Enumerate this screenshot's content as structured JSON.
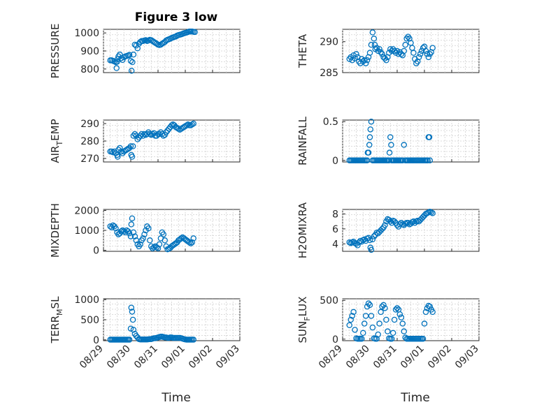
{
  "figure": {
    "title": "Figure 3 low",
    "xlabel": "Time",
    "marker_color": "#0072BD"
  },
  "x_ticks": [
    "08/29",
    "08/30",
    "08/31",
    "09/01",
    "09/02",
    "09/03"
  ],
  "chart_data": [
    {
      "type": "scatter",
      "id": "pressure",
      "ylabel": "PRESSURE",
      "ylim": [
        780,
        1020
      ],
      "yticks": [
        "800",
        "900",
        "1000"
      ],
      "ytick_values": [
        800,
        900,
        1000
      ],
      "x": [
        0.25,
        0.3,
        0.35,
        0.4,
        0.45,
        0.48,
        0.5,
        0.52,
        0.55,
        0.6,
        0.65,
        0.7,
        0.75,
        0.8,
        0.85,
        0.9,
        0.95,
        1.0,
        1.03,
        1.06,
        1.1,
        1.15,
        1.2,
        1.25,
        1.3,
        1.35,
        1.4,
        1.45,
        1.5,
        1.55,
        1.6,
        1.65,
        1.7,
        1.75,
        1.8,
        1.85,
        1.9,
        1.95,
        2.0,
        2.05,
        2.1,
        2.15,
        2.2,
        2.25,
        2.3,
        2.35,
        2.4,
        2.45,
        2.5,
        2.55,
        2.6,
        2.65,
        2.7,
        2.75,
        2.8,
        2.85,
        2.9,
        2.95,
        3.0,
        3.05,
        3.1,
        3.15,
        3.2,
        3.25,
        3.3,
        3.35
      ],
      "y": [
        848,
        848,
        845,
        842,
        838,
        805,
        840,
        855,
        870,
        880,
        860,
        850,
        865,
        870,
        872,
        875,
        878,
        845,
        790,
        838,
        880,
        935,
        930,
        915,
        940,
        950,
        955,
        955,
        958,
        960,
        955,
        958,
        962,
        960,
        955,
        950,
        945,
        940,
        935,
        933,
        935,
        940,
        945,
        950,
        958,
        962,
        965,
        968,
        972,
        975,
        978,
        980,
        985,
        988,
        990,
        992,
        995,
        998,
        1000,
        1002,
        1005,
        1008,
        1008,
        1008,
        1006,
        1005
      ]
    },
    {
      "type": "scatter",
      "id": "theta",
      "ylabel": "THETA",
      "ylim": [
        285,
        292
      ],
      "yticks": [
        "285",
        "290"
      ],
      "ytick_values": [
        285,
        290
      ],
      "x": [
        0.25,
        0.3,
        0.35,
        0.4,
        0.45,
        0.5,
        0.55,
        0.6,
        0.65,
        0.7,
        0.75,
        0.8,
        0.85,
        0.9,
        0.95,
        1.0,
        1.05,
        1.1,
        1.15,
        1.18,
        1.2,
        1.25,
        1.3,
        1.35,
        1.4,
        1.45,
        1.5,
        1.55,
        1.6,
        1.65,
        1.7,
        1.75,
        1.8,
        1.85,
        1.9,
        1.95,
        2.0,
        2.05,
        2.1,
        2.15,
        2.2,
        2.25,
        2.3,
        2.35,
        2.4,
        2.45,
        2.5,
        2.55,
        2.6,
        2.65,
        2.7,
        2.75,
        2.8,
        2.85,
        2.9,
        2.95,
        3.0,
        3.05,
        3.1,
        3.15,
        3.2,
        3.25,
        3.3
      ],
      "y": [
        287.2,
        287.5,
        287.0,
        287.8,
        287.3,
        288.0,
        287.5,
        286.8,
        286.5,
        287.2,
        286.8,
        287.0,
        286.5,
        287.0,
        287.5,
        288.2,
        289.5,
        291.5,
        290.5,
        289.5,
        288.8,
        289.0,
        288.5,
        288.8,
        288.3,
        288.0,
        287.5,
        287.3,
        287.0,
        287.5,
        288.2,
        288.8,
        288.5,
        288.8,
        288.5,
        288.2,
        288.5,
        288.0,
        288.3,
        288.0,
        287.8,
        288.5,
        289.5,
        290.5,
        290.8,
        290.5,
        289.8,
        289.0,
        288.2,
        287.2,
        286.5,
        286.8,
        287.5,
        288.0,
        288.5,
        289.0,
        289.2,
        288.5,
        288.0,
        287.5,
        288.0,
        288.3,
        289.0
      ]
    },
    {
      "type": "scatter",
      "id": "air_temp",
      "ylabel": "AIR_TEMP",
      "ylim": [
        268,
        292
      ],
      "yticks": [
        "270",
        "280",
        "290"
      ],
      "ytick_values": [
        270,
        280,
        290
      ],
      "x": [
        0.25,
        0.3,
        0.35,
        0.4,
        0.45,
        0.5,
        0.52,
        0.55,
        0.6,
        0.65,
        0.7,
        0.75,
        0.8,
        0.85,
        0.9,
        0.95,
        1.0,
        1.02,
        1.05,
        1.08,
        1.1,
        1.15,
        1.2,
        1.25,
        1.3,
        1.35,
        1.4,
        1.45,
        1.5,
        1.55,
        1.6,
        1.65,
        1.7,
        1.75,
        1.8,
        1.85,
        1.9,
        1.95,
        2.0,
        2.05,
        2.1,
        2.15,
        2.2,
        2.25,
        2.3,
        2.35,
        2.4,
        2.45,
        2.5,
        2.55,
        2.6,
        2.65,
        2.7,
        2.75,
        2.8,
        2.85,
        2.9,
        2.95,
        3.0,
        3.05,
        3.1,
        3.15,
        3.2,
        3.25,
        3.3
      ],
      "y": [
        274,
        274,
        273.5,
        274,
        273,
        272,
        271,
        275,
        276,
        274,
        273,
        274,
        274.5,
        275,
        275.5,
        276,
        277,
        272,
        271,
        277,
        283,
        284,
        283,
        281,
        282,
        283,
        284,
        283,
        284,
        283.5,
        284,
        285,
        284,
        283.5,
        284,
        284.5,
        283,
        283,
        284,
        284,
        285,
        284,
        283,
        283.5,
        285,
        286,
        287,
        288,
        289,
        289.5,
        289,
        288,
        287.5,
        287,
        286.5,
        287,
        287.5,
        288,
        288.5,
        289,
        289.5,
        289,
        289,
        289.5,
        290
      ]
    },
    {
      "type": "scatter",
      "id": "rainfall",
      "ylabel": "RAINFALL",
      "ylim": [
        -0.02,
        0.52
      ],
      "yticks": [
        "0",
        "0.5"
      ],
      "ytick_values": [
        0,
        0.5
      ],
      "x": [
        0.25,
        0.3,
        0.35,
        0.4,
        0.45,
        0.5,
        0.55,
        0.6,
        0.65,
        0.7,
        0.75,
        0.8,
        0.85,
        0.9,
        0.92,
        0.95,
        0.98,
        1.0,
        1.02,
        1.05,
        1.1,
        1.15,
        1.2,
        1.25,
        1.3,
        1.35,
        1.4,
        1.45,
        1.5,
        1.55,
        1.6,
        1.65,
        1.7,
        1.72,
        1.75,
        1.78,
        1.8,
        1.85,
        1.9,
        1.95,
        2.0,
        2.05,
        2.1,
        2.15,
        2.2,
        2.25,
        2.3,
        2.35,
        2.4,
        2.45,
        2.5,
        2.55,
        2.6,
        2.65,
        2.7,
        2.75,
        2.8,
        2.85,
        2.9,
        2.95,
        3.0,
        3.05,
        3.1,
        3.12,
        3.15,
        3.18,
        3.2
      ],
      "y": [
        0,
        0,
        0,
        0,
        0,
        0,
        0,
        0,
        0,
        0,
        0,
        0,
        0,
        0,
        0.1,
        0.1,
        0.2,
        0.3,
        0.4,
        0.5,
        0,
        0,
        0,
        0,
        0,
        0,
        0,
        0,
        0,
        0,
        0,
        0,
        0,
        0.1,
        0.3,
        0.2,
        0,
        0,
        0,
        0,
        0,
        0,
        0,
        0,
        0,
        0.2,
        0,
        0,
        0,
        0,
        0,
        0,
        0,
        0,
        0,
        0,
        0,
        0,
        0,
        0,
        0,
        0,
        0,
        0,
        0.3,
        0.3,
        0
      ]
    },
    {
      "type": "scatter",
      "id": "mixdepth",
      "ylabel": "MIXDEPTH",
      "ylim": [
        -50,
        2050
      ],
      "yticks": [
        "0",
        "1000",
        "2000"
      ],
      "ytick_values": [
        0,
        1000,
        2000
      ],
      "x": [
        0.25,
        0.3,
        0.35,
        0.4,
        0.45,
        0.5,
        0.55,
        0.6,
        0.65,
        0.7,
        0.75,
        0.8,
        0.85,
        0.9,
        0.95,
        1.0,
        1.02,
        1.05,
        1.1,
        1.15,
        1.2,
        1.25,
        1.3,
        1.35,
        1.4,
        1.45,
        1.5,
        1.55,
        1.6,
        1.65,
        1.7,
        1.75,
        1.8,
        1.85,
        1.9,
        1.95,
        2.0,
        2.05,
        2.1,
        2.15,
        2.2,
        2.25,
        2.3,
        2.35,
        2.4,
        2.45,
        2.5,
        2.55,
        2.6,
        2.65,
        2.7,
        2.75,
        2.8,
        2.85,
        2.9,
        2.95,
        3.0,
        3.05,
        3.1,
        3.15,
        3.2,
        3.25,
        3.3
      ],
      "y": [
        1200,
        1150,
        1250,
        1200,
        1100,
        900,
        800,
        850,
        950,
        1000,
        950,
        900,
        1000,
        950,
        850,
        700,
        1300,
        1600,
        900,
        700,
        500,
        300,
        200,
        300,
        500,
        600,
        800,
        1000,
        1200,
        1100,
        500,
        200,
        100,
        150,
        200,
        150,
        100,
        300,
        600,
        900,
        800,
        500,
        200,
        50,
        80,
        120,
        200,
        250,
        300,
        350,
        400,
        500,
        550,
        600,
        650,
        600,
        550,
        500,
        450,
        400,
        350,
        400,
        600
      ]
    },
    {
      "type": "scatter",
      "id": "h2omixra",
      "ylabel": "H2OMIXRA",
      "ylim": [
        3,
        8.6
      ],
      "yticks": [
        "4",
        "6",
        "8"
      ],
      "ytick_values": [
        4,
        6,
        8
      ],
      "x": [
        0.25,
        0.3,
        0.35,
        0.4,
        0.45,
        0.5,
        0.55,
        0.6,
        0.65,
        0.7,
        0.75,
        0.8,
        0.85,
        0.9,
        0.95,
        1.0,
        1.02,
        1.05,
        1.1,
        1.15,
        1.2,
        1.25,
        1.3,
        1.35,
        1.4,
        1.45,
        1.5,
        1.55,
        1.6,
        1.65,
        1.7,
        1.75,
        1.8,
        1.85,
        1.9,
        1.95,
        2.0,
        2.05,
        2.1,
        2.15,
        2.2,
        2.25,
        2.3,
        2.35,
        2.4,
        2.45,
        2.5,
        2.55,
        2.6,
        2.65,
        2.7,
        2.75,
        2.8,
        2.85,
        2.9,
        2.95,
        3.0,
        3.05,
        3.1,
        3.15,
        3.2,
        3.25,
        3.3
      ],
      "y": [
        4.2,
        4.1,
        4.2,
        4.3,
        4.1,
        4.0,
        3.8,
        4.2,
        4.4,
        4.3,
        4.5,
        4.6,
        4.4,
        4.7,
        4.8,
        4.5,
        3.5,
        3.2,
        4.6,
        5.0,
        5.2,
        5.5,
        5.4,
        5.6,
        5.8,
        6.0,
        6.2,
        6.5,
        7.0,
        7.3,
        7.2,
        7.0,
        6.8,
        7.1,
        7.0,
        6.8,
        6.5,
        6.3,
        6.6,
        6.8,
        6.6,
        6.5,
        6.7,
        6.8,
        6.8,
        6.6,
        6.7,
        6.9,
        7.0,
        6.8,
        7.0,
        7.1,
        7.0,
        7.2,
        7.4,
        7.6,
        7.8,
        8.0,
        8.1,
        8.2,
        8.3,
        8.2,
        8.1
      ]
    },
    {
      "type": "scatter",
      "id": "terr_msl",
      "ylabel": "TERR_MSL",
      "ylim": [
        -20,
        1020
      ],
      "yticks": [
        "0",
        "500",
        "1000"
      ],
      "ytick_values": [
        0,
        500,
        1000
      ],
      "x": [
        0.25,
        0.3,
        0.35,
        0.4,
        0.45,
        0.5,
        0.55,
        0.6,
        0.65,
        0.7,
        0.75,
        0.8,
        0.85,
        0.9,
        0.95,
        1.0,
        1.02,
        1.05,
        1.08,
        1.1,
        1.15,
        1.2,
        1.25,
        1.3,
        1.35,
        1.4,
        1.45,
        1.5,
        1.55,
        1.6,
        1.65,
        1.7,
        1.75,
        1.8,
        1.85,
        1.9,
        1.95,
        2.0,
        2.05,
        2.1,
        2.15,
        2.2,
        2.25,
        2.3,
        2.35,
        2.4,
        2.45,
        2.5,
        2.55,
        2.6,
        2.65,
        2.7,
        2.75,
        2.8,
        2.85,
        2.9,
        2.95,
        3.0,
        3.05,
        3.1,
        3.15,
        3.2,
        3.25,
        3.3
      ],
      "y": [
        5,
        5,
        5,
        5,
        5,
        5,
        5,
        5,
        5,
        5,
        5,
        5,
        5,
        5,
        5,
        280,
        800,
        700,
        500,
        250,
        150,
        100,
        60,
        20,
        10,
        10,
        10,
        10,
        10,
        10,
        15,
        20,
        20,
        30,
        40,
        40,
        50,
        60,
        70,
        80,
        80,
        70,
        60,
        60,
        50,
        50,
        60,
        60,
        50,
        50,
        50,
        50,
        50,
        50,
        40,
        30,
        20,
        10,
        5,
        5,
        5,
        5,
        5,
        5
      ]
    },
    {
      "type": "scatter",
      "id": "sun_flux",
      "ylabel": "SUN_FLUX",
      "ylim": [
        -20,
        520
      ],
      "yticks": [
        "0",
        "500"
      ],
      "ytick_values": [
        0,
        500
      ],
      "x": [
        0.25,
        0.3,
        0.35,
        0.4,
        0.45,
        0.5,
        0.55,
        0.6,
        0.65,
        0.7,
        0.75,
        0.8,
        0.85,
        0.9,
        0.95,
        1.0,
        1.05,
        1.1,
        1.15,
        1.2,
        1.25,
        1.3,
        1.35,
        1.4,
        1.45,
        1.5,
        1.55,
        1.6,
        1.65,
        1.7,
        1.75,
        1.8,
        1.85,
        1.9,
        1.95,
        2.0,
        2.05,
        2.1,
        2.15,
        2.2,
        2.25,
        2.3,
        2.35,
        2.4,
        2.45,
        2.5,
        2.55,
        2.6,
        2.65,
        2.7,
        2.75,
        2.8,
        2.85,
        2.9,
        2.95,
        3.0,
        3.05,
        3.1,
        3.15,
        3.2,
        3.25,
        3.3
      ],
      "y": [
        180,
        250,
        300,
        350,
        120,
        10,
        5,
        5,
        5,
        5,
        80,
        200,
        300,
        420,
        460,
        440,
        300,
        150,
        10,
        5,
        5,
        60,
        200,
        350,
        420,
        440,
        400,
        250,
        100,
        10,
        5,
        5,
        80,
        250,
        380,
        400,
        380,
        320,
        280,
        200,
        100,
        20,
        5,
        5,
        5,
        5,
        5,
        5,
        5,
        5,
        5,
        5,
        5,
        5,
        5,
        200,
        350,
        400,
        430,
        420,
        380,
        350
      ]
    }
  ]
}
